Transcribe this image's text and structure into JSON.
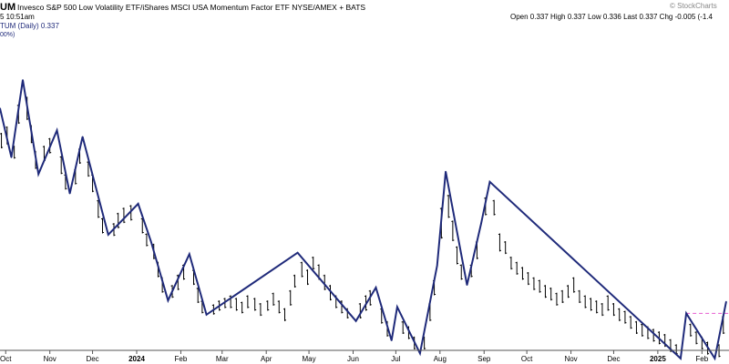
{
  "header": {
    "symbol_fragment": "UM",
    "title": "Invesco S&P 500 Low Volatility ETF/iShares MSCI USA Momentum Factor ETF  NYSE/AMEX + BATS",
    "watermark": "© StockCharts",
    "time_fragment": "5 10:51am",
    "quote": "Open 0.337  High 0.337  Low 0.336  Last 0.337  Chg -0.005 (-1.4",
    "series_label": "TUM (Daily) 0.337",
    "scale_fragment": "00%)"
  },
  "colors": {
    "zigzag": "#1f2a7a",
    "bars": "#000000",
    "reference_line": "#e75bd0",
    "axis": "#555555",
    "series_label": "#1f2a7a"
  },
  "chart_data": {
    "type": "line",
    "title": "Invesco S&P 500 Low Volatility ETF/iShares MSCI USA Momentum Factor ETF",
    "x_tick_labels": [
      "Oct",
      "Nov",
      "Dec",
      "2024",
      "Feb",
      "Mar",
      "Apr",
      "May",
      "Jun",
      "Jul",
      "Aug",
      "Sep",
      "Oct",
      "Nov",
      "Dec",
      "2025",
      "Feb"
    ],
    "x_tick_dates": [
      "2023-10-01",
      "2023-11-01",
      "2023-12-01",
      "2024-01-01",
      "2024-02-01",
      "2024-03-01",
      "2024-04-01",
      "2024-05-01",
      "2024-06-01",
      "2024-07-01",
      "2024-08-01",
      "2024-09-01",
      "2024-10-01",
      "2024-11-01",
      "2024-12-01",
      "2025-01-01",
      "2025-02-01"
    ],
    "xlim": [
      "2023-09-27",
      "2025-02-20"
    ],
    "ylim": [
      0.333,
      0.357
    ],
    "grid": false,
    "series": [
      {
        "style": "zigzag",
        "points": [
          {
            "x": "2023-09-27",
            "y": 0.3517
          },
          {
            "x": "2023-10-05",
            "y": 0.3479
          },
          {
            "x": "2023-10-13",
            "y": 0.3539
          },
          {
            "x": "2023-10-24",
            "y": 0.3466
          },
          {
            "x": "2023-11-06",
            "y": 0.35
          },
          {
            "x": "2023-11-15",
            "y": 0.3451
          },
          {
            "x": "2023-11-24",
            "y": 0.3495
          },
          {
            "x": "2023-12-12",
            "y": 0.3419
          },
          {
            "x": "2024-01-02",
            "y": 0.3443
          },
          {
            "x": "2024-01-11",
            "y": 0.3414
          },
          {
            "x": "2024-01-23",
            "y": 0.3368
          },
          {
            "x": "2024-02-07",
            "y": 0.3404
          },
          {
            "x": "2024-02-19",
            "y": 0.3357
          },
          {
            "x": "2024-04-23",
            "y": 0.3405
          },
          {
            "x": "2024-06-03",
            "y": 0.3352
          },
          {
            "x": "2024-06-17",
            "y": 0.3378
          },
          {
            "x": "2024-06-28",
            "y": 0.3337
          },
          {
            "x": "2024-07-02",
            "y": 0.3363
          },
          {
            "x": "2024-07-18",
            "y": 0.3327
          },
          {
            "x": "2024-07-30",
            "y": 0.3395
          },
          {
            "x": "2024-08-05",
            "y": 0.3468
          },
          {
            "x": "2024-08-20",
            "y": 0.338
          },
          {
            "x": "2024-08-30",
            "y": 0.3428
          },
          {
            "x": "2024-09-05",
            "y": 0.346
          },
          {
            "x": "2025-01-17",
            "y": 0.3323
          },
          {
            "x": "2025-01-21",
            "y": 0.3358
          },
          {
            "x": "2025-02-10",
            "y": 0.3323
          },
          {
            "x": "2025-02-18",
            "y": 0.3367
          }
        ]
      }
    ],
    "reference_line": {
      "y": 0.3358,
      "x_start": "2025-01-21",
      "x_end": "2025-02-20",
      "style": "dashed"
    },
    "daily_bars": [
      {
        "x": "2023-09-28",
        "h": 0.3498,
        "l": 0.3486
      },
      {
        "x": "2023-10-02",
        "h": 0.3503,
        "l": 0.3489
      },
      {
        "x": "2023-10-07",
        "h": 0.3488,
        "l": 0.3478
      },
      {
        "x": "2023-10-10",
        "h": 0.352,
        "l": 0.3505
      },
      {
        "x": "2023-10-16",
        "h": 0.3526,
        "l": 0.3508
      },
      {
        "x": "2023-10-19",
        "h": 0.3504,
        "l": 0.349
      },
      {
        "x": "2023-10-22",
        "h": 0.3484,
        "l": 0.347
      },
      {
        "x": "2023-10-28",
        "h": 0.3488,
        "l": 0.3476
      },
      {
        "x": "2023-11-01",
        "h": 0.3494,
        "l": 0.3482
      },
      {
        "x": "2023-11-09",
        "h": 0.348,
        "l": 0.3466
      },
      {
        "x": "2023-11-12",
        "h": 0.3466,
        "l": 0.3454
      },
      {
        "x": "2023-11-19",
        "h": 0.347,
        "l": 0.3458
      },
      {
        "x": "2023-11-22",
        "h": 0.3486,
        "l": 0.3474
      },
      {
        "x": "2023-11-28",
        "h": 0.3476,
        "l": 0.3464
      },
      {
        "x": "2023-12-01",
        "h": 0.3466,
        "l": 0.3452
      },
      {
        "x": "2023-12-05",
        "h": 0.3446,
        "l": 0.3432
      },
      {
        "x": "2023-12-08",
        "h": 0.3432,
        "l": 0.342
      },
      {
        "x": "2023-12-16",
        "h": 0.3428,
        "l": 0.3418
      },
      {
        "x": "2023-12-19",
        "h": 0.3436,
        "l": 0.3424
      },
      {
        "x": "2023-12-23",
        "h": 0.344,
        "l": 0.3428
      },
      {
        "x": "2023-12-28",
        "h": 0.3442,
        "l": 0.343
      },
      {
        "x": "2024-01-05",
        "h": 0.3432,
        "l": 0.342
      },
      {
        "x": "2024-01-08",
        "h": 0.342,
        "l": 0.341
      },
      {
        "x": "2024-01-13",
        "h": 0.3412,
        "l": 0.34
      },
      {
        "x": "2024-01-16",
        "h": 0.3398,
        "l": 0.3386
      },
      {
        "x": "2024-01-19",
        "h": 0.3386,
        "l": 0.3374
      },
      {
        "x": "2024-01-26",
        "h": 0.338,
        "l": 0.337
      },
      {
        "x": "2024-01-30",
        "h": 0.3388,
        "l": 0.3376
      },
      {
        "x": "2024-02-03",
        "h": 0.3396,
        "l": 0.3384
      },
      {
        "x": "2024-02-10",
        "h": 0.3392,
        "l": 0.338
      },
      {
        "x": "2024-02-13",
        "h": 0.3378,
        "l": 0.3366
      },
      {
        "x": "2024-02-16",
        "h": 0.3368,
        "l": 0.3358
      },
      {
        "x": "2024-02-24",
        "h": 0.3365,
        "l": 0.3357
      },
      {
        "x": "2024-02-28",
        "h": 0.3368,
        "l": 0.336
      },
      {
        "x": "2024-03-03",
        "h": 0.337,
        "l": 0.3362
      },
      {
        "x": "2024-03-07",
        "h": 0.3372,
        "l": 0.3362
      },
      {
        "x": "2024-03-11",
        "h": 0.337,
        "l": 0.336
      },
      {
        "x": "2024-03-15",
        "h": 0.3367,
        "l": 0.3358
      },
      {
        "x": "2024-03-19",
        "h": 0.3372,
        "l": 0.3362
      },
      {
        "x": "2024-03-24",
        "h": 0.337,
        "l": 0.336
      },
      {
        "x": "2024-03-28",
        "h": 0.3366,
        "l": 0.3356
      },
      {
        "x": "2024-04-02",
        "h": 0.3368,
        "l": 0.336
      },
      {
        "x": "2024-04-06",
        "h": 0.3374,
        "l": 0.3364
      },
      {
        "x": "2024-04-10",
        "h": 0.3368,
        "l": 0.3358
      },
      {
        "x": "2024-04-14",
        "h": 0.3362,
        "l": 0.3352
      },
      {
        "x": "2024-04-18",
        "h": 0.3376,
        "l": 0.3364
      },
      {
        "x": "2024-04-21",
        "h": 0.3388,
        "l": 0.3378
      },
      {
        "x": "2024-04-26",
        "h": 0.3398,
        "l": 0.3386
      },
      {
        "x": "2024-04-30",
        "h": 0.3392,
        "l": 0.338
      },
      {
        "x": "2024-05-04",
        "h": 0.3402,
        "l": 0.3392
      },
      {
        "x": "2024-05-08",
        "h": 0.3396,
        "l": 0.3384
      },
      {
        "x": "2024-05-12",
        "h": 0.3388,
        "l": 0.3376
      },
      {
        "x": "2024-05-16",
        "h": 0.338,
        "l": 0.3368
      },
      {
        "x": "2024-05-20",
        "h": 0.3372,
        "l": 0.3362
      },
      {
        "x": "2024-05-24",
        "h": 0.3368,
        "l": 0.3358
      },
      {
        "x": "2024-05-28",
        "h": 0.3362,
        "l": 0.3354
      },
      {
        "x": "2024-06-06",
        "h": 0.3366,
        "l": 0.3354
      },
      {
        "x": "2024-06-10",
        "h": 0.3372,
        "l": 0.336
      },
      {
        "x": "2024-06-13",
        "h": 0.3376,
        "l": 0.3364
      },
      {
        "x": "2024-06-21",
        "h": 0.3362,
        "l": 0.335
      },
      {
        "x": "2024-06-25",
        "h": 0.3352,
        "l": 0.334
      },
      {
        "x": "2024-07-06",
        "h": 0.3352,
        "l": 0.3342
      },
      {
        "x": "2024-07-10",
        "h": 0.3348,
        "l": 0.3338
      },
      {
        "x": "2024-07-14",
        "h": 0.334,
        "l": 0.333
      },
      {
        "x": "2024-07-21",
        "h": 0.334,
        "l": 0.333
      },
      {
        "x": "2024-07-25",
        "h": 0.3366,
        "l": 0.3352
      },
      {
        "x": "2024-07-28",
        "h": 0.3384,
        "l": 0.3372
      },
      {
        "x": "2024-08-02",
        "h": 0.344,
        "l": 0.3416
      },
      {
        "x": "2024-08-07",
        "h": 0.345,
        "l": 0.3432
      },
      {
        "x": "2024-08-10",
        "h": 0.343,
        "l": 0.3414
      },
      {
        "x": "2024-08-13",
        "h": 0.341,
        "l": 0.3396
      },
      {
        "x": "2024-08-16",
        "h": 0.3396,
        "l": 0.3384
      },
      {
        "x": "2024-08-23",
        "h": 0.3396,
        "l": 0.3386
      },
      {
        "x": "2024-08-27",
        "h": 0.3414,
        "l": 0.34
      },
      {
        "x": "2024-09-02",
        "h": 0.3448,
        "l": 0.3434
      },
      {
        "x": "2024-09-08",
        "h": 0.3446,
        "l": 0.3434
      },
      {
        "x": "2024-09-12",
        "h": 0.342,
        "l": 0.3406
      },
      {
        "x": "2024-09-16",
        "h": 0.3414,
        "l": 0.3404
      },
      {
        "x": "2024-09-20",
        "h": 0.3402,
        "l": 0.3392
      },
      {
        "x": "2024-09-24",
        "h": 0.3398,
        "l": 0.3388
      },
      {
        "x": "2024-09-28",
        "h": 0.3394,
        "l": 0.3384
      },
      {
        "x": "2024-10-02",
        "h": 0.339,
        "l": 0.338
      },
      {
        "x": "2024-10-06",
        "h": 0.3386,
        "l": 0.3376
      },
      {
        "x": "2024-10-10",
        "h": 0.3384,
        "l": 0.3374
      },
      {
        "x": "2024-10-14",
        "h": 0.338,
        "l": 0.337
      },
      {
        "x": "2024-10-18",
        "h": 0.3378,
        "l": 0.3368
      },
      {
        "x": "2024-10-22",
        "h": 0.3374,
        "l": 0.3364
      },
      {
        "x": "2024-10-26",
        "h": 0.3376,
        "l": 0.3366
      },
      {
        "x": "2024-10-30",
        "h": 0.338,
        "l": 0.337
      },
      {
        "x": "2024-11-03",
        "h": 0.3386,
        "l": 0.3374
      },
      {
        "x": "2024-11-07",
        "h": 0.3376,
        "l": 0.3366
      },
      {
        "x": "2024-11-11",
        "h": 0.3372,
        "l": 0.3362
      },
      {
        "x": "2024-11-15",
        "h": 0.337,
        "l": 0.336
      },
      {
        "x": "2024-11-19",
        "h": 0.3368,
        "l": 0.3358
      },
      {
        "x": "2024-11-23",
        "h": 0.3366,
        "l": 0.3356
      },
      {
        "x": "2024-11-27",
        "h": 0.3372,
        "l": 0.336
      },
      {
        "x": "2024-12-01",
        "h": 0.3366,
        "l": 0.3356
      },
      {
        "x": "2024-12-05",
        "h": 0.3362,
        "l": 0.3352
      },
      {
        "x": "2024-12-09",
        "h": 0.336,
        "l": 0.335
      },
      {
        "x": "2024-12-13",
        "h": 0.3356,
        "l": 0.3346
      },
      {
        "x": "2024-12-17",
        "h": 0.3352,
        "l": 0.3342
      },
      {
        "x": "2024-12-21",
        "h": 0.335,
        "l": 0.334
      },
      {
        "x": "2024-12-25",
        "h": 0.3348,
        "l": 0.3338
      },
      {
        "x": "2024-12-29",
        "h": 0.3346,
        "l": 0.3336
      },
      {
        "x": "2025-01-02",
        "h": 0.3344,
        "l": 0.3334
      },
      {
        "x": "2025-01-06",
        "h": 0.3342,
        "l": 0.3332
      },
      {
        "x": "2025-01-10",
        "h": 0.3338,
        "l": 0.3328
      },
      {
        "x": "2025-01-14",
        "h": 0.3334,
        "l": 0.3326
      },
      {
        "x": "2025-01-24",
        "h": 0.335,
        "l": 0.334
      },
      {
        "x": "2025-01-28",
        "h": 0.3344,
        "l": 0.3334
      },
      {
        "x": "2025-02-01",
        "h": 0.334,
        "l": 0.333
      },
      {
        "x": "2025-02-05",
        "h": 0.3336,
        "l": 0.3326
      },
      {
        "x": "2025-02-13",
        "h": 0.3334,
        "l": 0.3324
      },
      {
        "x": "2025-02-16",
        "h": 0.3356,
        "l": 0.3342
      }
    ]
  }
}
